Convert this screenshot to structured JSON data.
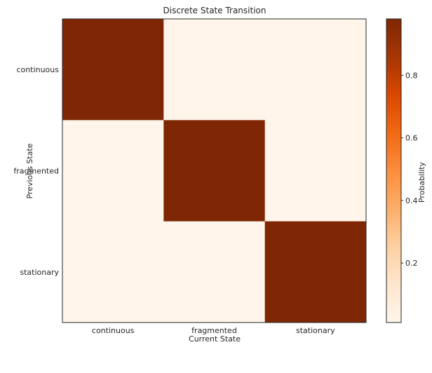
{
  "chart_data": {
    "type": "heatmap",
    "title": "Discrete State Transition",
    "xlabel": "Current State",
    "ylabel": "Previous State",
    "x_categories": [
      "continuous",
      "fragmented",
      "stationary"
    ],
    "y_categories": [
      "continuous",
      "fragmented",
      "stationary"
    ],
    "values": [
      [
        0.98,
        0.01,
        0.01
      ],
      [
        0.01,
        0.98,
        0.01
      ],
      [
        0.01,
        0.01,
        0.98
      ]
    ],
    "colorbar": {
      "label": "Probability",
      "colormap": "Oranges",
      "range": [
        0.01,
        0.98
      ],
      "ticks": [
        0.2,
        0.4,
        0.6,
        0.8
      ]
    },
    "grid": false
  }
}
